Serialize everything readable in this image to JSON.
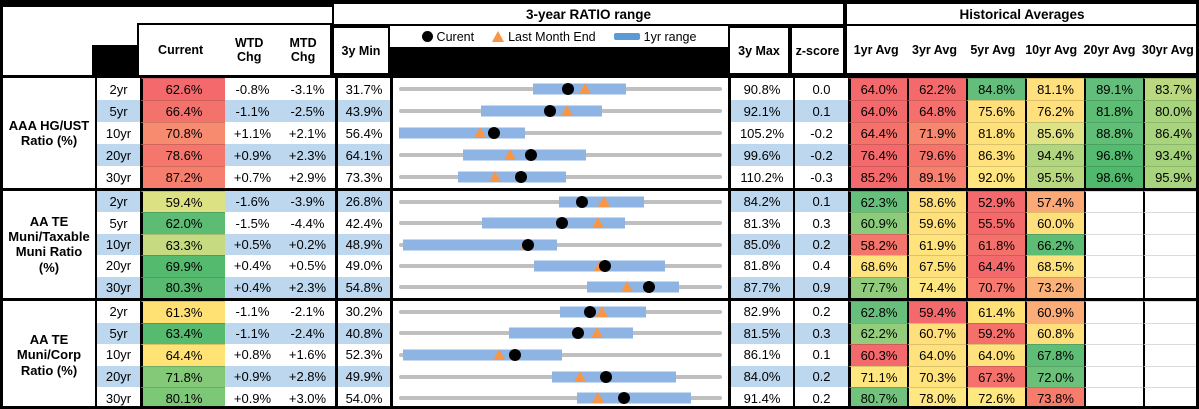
{
  "header": {
    "ratio_section_title": "3-year RATIO range",
    "hist_section_title": "Historical Averages",
    "columns": {
      "current": "Current",
      "wtd": "WTD Chg",
      "mtd": "MTD Chg",
      "min": "3y Min",
      "max": "3y Max",
      "z": "z-score"
    },
    "avg_columns": [
      "1yr Avg",
      "3yr Avg",
      "5yr Avg",
      "10yr Avg",
      "20yr Avg",
      "30yr Avg"
    ],
    "legend": {
      "current": "Curent",
      "last_month_end": "Last Month End",
      "yr1_range": "1yr range"
    }
  },
  "colors": {
    "band_blue": "#BDD7EE",
    "track_gray": "#BFBFBF",
    "bar_blue": "#8EB4E3",
    "marker_orange": "#F79646",
    "marker_black": "#000000",
    "scale_red": "#F4696B",
    "scale_yellow": "#FFE07C",
    "scale_green": "#63BE7B"
  },
  "chart_data": {
    "type": "range-plot-table",
    "title": "3-year RATIO range",
    "legend": [
      "Curent",
      "Last Month End",
      "1yr range"
    ],
    "note": "each row plots current dot, last-month-end triangle and 1yr-range bar on a 3yMin..3yMax axis",
    "groups": [
      {
        "label": "AAA HG/UST\nRatio (%)",
        "rows": [
          {
            "tenor": "2yr",
            "current": "62.6%",
            "current_bg": "#F4696B",
            "wtd": "-0.8%",
            "mtd": "-3.1%",
            "min": "31.7%",
            "max": "90.8%",
            "z": "0.0",
            "range_plot": {
              "axis_min": 31.7,
              "axis_max": 90.8,
              "current": 62.6,
              "last_month_end": 65.7,
              "yr1_low": 56.3,
              "yr1_high": 73.2
            },
            "avgs": [
              {
                "v": "64.0%",
                "bg": "#F4696B"
              },
              {
                "v": "62.2%",
                "bg": "#F4696B"
              },
              {
                "v": "84.8%",
                "bg": "#63BE7B"
              },
              {
                "v": "81.1%",
                "bg": "#FFE07C"
              },
              {
                "v": "89.1%",
                "bg": "#63BE7B"
              },
              {
                "v": "83.7%",
                "bg": "#B9D880"
              }
            ]
          },
          {
            "tenor": "5yr",
            "current": "66.4%",
            "current_bg": "#F3736C",
            "wtd": "-1.1%",
            "mtd": "-2.5%",
            "min": "43.9%",
            "max": "92.1%",
            "z": "0.1",
            "range_plot": {
              "axis_min": 43.9,
              "axis_max": 92.1,
              "current": 66.4,
              "last_month_end": 68.9,
              "yr1_low": 56.2,
              "yr1_high": 74.2
            },
            "avgs": [
              {
                "v": "64.0%",
                "bg": "#F4696B"
              },
              {
                "v": "64.8%",
                "bg": "#F56F6C"
              },
              {
                "v": "75.6%",
                "bg": "#FFDF7B"
              },
              {
                "v": "76.2%",
                "bg": "#FFE07C"
              },
              {
                "v": "81.8%",
                "bg": "#5EBD75"
              },
              {
                "v": "80.0%",
                "bg": "#A8D47E"
              }
            ]
          },
          {
            "tenor": "10yr",
            "current": "70.8%",
            "current_bg": "#F78B70",
            "wtd": "+1.1%",
            "mtd": "+2.1%",
            "min": "56.4%",
            "max": "105.2%",
            "z": "-0.2",
            "range_plot": {
              "axis_min": 56.4,
              "axis_max": 105.2,
              "current": 70.8,
              "last_month_end": 68.7,
              "yr1_low": 56.4,
              "yr1_high": 75.5
            },
            "avgs": [
              {
                "v": "64.4%",
                "bg": "#F4716C"
              },
              {
                "v": "71.9%",
                "bg": "#F8876F"
              },
              {
                "v": "81.8%",
                "bg": "#FFE17C"
              },
              {
                "v": "85.6%",
                "bg": "#DFE285"
              },
              {
                "v": "88.8%",
                "bg": "#60BE77"
              },
              {
                "v": "86.4%",
                "bg": "#A9D47E"
              }
            ]
          },
          {
            "tenor": "20yr",
            "current": "78.6%",
            "current_bg": "#F4766C",
            "wtd": "+0.9%",
            "mtd": "+2.3%",
            "min": "64.1%",
            "max": "99.6%",
            "z": "-0.2",
            "range_plot": {
              "axis_min": 64.1,
              "axis_max": 99.6,
              "current": 78.6,
              "last_month_end": 76.3,
              "yr1_low": 71.1,
              "yr1_high": 84.6
            },
            "avgs": [
              {
                "v": "76.4%",
                "bg": "#F4696B"
              },
              {
                "v": "79.6%",
                "bg": "#F5756C"
              },
              {
                "v": "86.3%",
                "bg": "#FFE27D"
              },
              {
                "v": "94.4%",
                "bg": "#B2D67F"
              },
              {
                "v": "96.8%",
                "bg": "#55BB70"
              },
              {
                "v": "93.4%",
                "bg": "#A5D37D"
              }
            ]
          },
          {
            "tenor": "30yr",
            "current": "87.2%",
            "current_bg": "#F57E6D",
            "wtd": "+0.7%",
            "mtd": "+2.9%",
            "min": "73.3%",
            "max": "110.2%",
            "z": "-0.3",
            "range_plot": {
              "axis_min": 73.3,
              "axis_max": 110.2,
              "current": 87.2,
              "last_month_end": 84.3,
              "yr1_low": 80.0,
              "yr1_high": 92.4
            },
            "avgs": [
              {
                "v": "85.2%",
                "bg": "#F4696B"
              },
              {
                "v": "89.1%",
                "bg": "#F8806E"
              },
              {
                "v": "92.0%",
                "bg": "#FFE67F"
              },
              {
                "v": "95.5%",
                "bg": "#B8D880"
              },
              {
                "v": "98.6%",
                "bg": "#50B96C"
              },
              {
                "v": "95.9%",
                "bg": "#A8D47E"
              }
            ]
          }
        ]
      },
      {
        "label": "AA TE\nMuni/Taxable\nMuni Ratio\n(%)",
        "rows": [
          {
            "tenor": "2yr",
            "current": "59.4%",
            "current_bg": "#DCE183",
            "wtd": "-1.6%",
            "mtd": "-3.9%",
            "min": "26.8%",
            "max": "84.2%",
            "z": "0.1",
            "range_plot": {
              "axis_min": 26.8,
              "axis_max": 84.2,
              "current": 59.4,
              "last_month_end": 63.3,
              "yr1_low": 55.3,
              "yr1_high": 70.4
            },
            "avgs": [
              {
                "v": "62.3%",
                "bg": "#66BF7A"
              },
              {
                "v": "58.6%",
                "bg": "#FFDF7B"
              },
              {
                "v": "52.9%",
                "bg": "#F4696B"
              },
              {
                "v": "57.4%",
                "bg": "#FBA977"
              },
              {
                "v": "",
                "bg": "#FFFFFF"
              },
              {
                "v": "",
                "bg": "#FFFFFF"
              }
            ]
          },
          {
            "tenor": "5yr",
            "current": "62.0%",
            "current_bg": "#5CBC73",
            "wtd": "-1.5%",
            "mtd": "-4.4%",
            "min": "42.4%",
            "max": "81.3%",
            "z": "0.3",
            "range_plot": {
              "axis_min": 42.4,
              "axis_max": 81.3,
              "current": 62.0,
              "last_month_end": 66.4,
              "yr1_low": 52.4,
              "yr1_high": 69.6
            },
            "avgs": [
              {
                "v": "60.9%",
                "bg": "#8BCB7B"
              },
              {
                "v": "59.6%",
                "bg": "#FFE07C"
              },
              {
                "v": "55.5%",
                "bg": "#F46A6B"
              },
              {
                "v": "60.0%",
                "bg": "#FFDF7B"
              },
              {
                "v": "",
                "bg": "#FFFFFF"
              },
              {
                "v": "",
                "bg": "#FFFFFF"
              }
            ]
          },
          {
            "tenor": "10yr",
            "current": "63.3%",
            "current_bg": "#C6DB81",
            "wtd": "+0.5%",
            "mtd": "+0.2%",
            "min": "48.9%",
            "max": "85.0%",
            "z": "0.2",
            "range_plot": {
              "axis_min": 48.9,
              "axis_max": 85.0,
              "current": 63.3,
              "last_month_end": 63.1,
              "yr1_low": 49.3,
              "yr1_high": 66.6
            },
            "avgs": [
              {
                "v": "58.2%",
                "bg": "#F4756C"
              },
              {
                "v": "61.9%",
                "bg": "#FFE37D"
              },
              {
                "v": "61.8%",
                "bg": "#F4706B"
              },
              {
                "v": "66.2%",
                "bg": "#5DBD75"
              },
              {
                "v": "",
                "bg": "#FFFFFF"
              },
              {
                "v": "",
                "bg": "#FFFFFF"
              }
            ]
          },
          {
            "tenor": "20yr",
            "current": "69.9%",
            "current_bg": "#53BA6E",
            "wtd": "+0.4%",
            "mtd": "+0.5%",
            "min": "49.0%",
            "max": "81.8%",
            "z": "0.4",
            "range_plot": {
              "axis_min": 49.0,
              "axis_max": 81.8,
              "current": 69.9,
              "last_month_end": 69.4,
              "yr1_low": 62.7,
              "yr1_high": 76.0
            },
            "avgs": [
              {
                "v": "68.6%",
                "bg": "#FFE47E"
              },
              {
                "v": "67.5%",
                "bg": "#FFE17C"
              },
              {
                "v": "64.4%",
                "bg": "#F4696B"
              },
              {
                "v": "68.5%",
                "bg": "#FFE27D"
              },
              {
                "v": "",
                "bg": "#FFFFFF"
              },
              {
                "v": "",
                "bg": "#FFFFFF"
              }
            ]
          },
          {
            "tenor": "30yr",
            "current": "80.3%",
            "current_bg": "#58BB71",
            "wtd": "+0.4%",
            "mtd": "+2.3%",
            "min": "54.8%",
            "max": "87.7%",
            "z": "0.9",
            "range_plot": {
              "axis_min": 54.8,
              "axis_max": 87.7,
              "current": 80.3,
              "last_month_end": 78.0,
              "yr1_low": 74.0,
              "yr1_high": 83.3
            },
            "avgs": [
              {
                "v": "77.7%",
                "bg": "#90CC7B"
              },
              {
                "v": "74.4%",
                "bg": "#FFE77F"
              },
              {
                "v": "70.7%",
                "bg": "#F8796D"
              },
              {
                "v": "73.2%",
                "bg": "#FBB278"
              },
              {
                "v": "",
                "bg": "#FFFFFF"
              },
              {
                "v": "",
                "bg": "#FFFFFF"
              }
            ]
          }
        ]
      },
      {
        "label": "AA TE\nMuni/Corp\nRatio (%)",
        "rows": [
          {
            "tenor": "2yr",
            "current": "61.3%",
            "current_bg": "#FFE072",
            "wtd": "-1.1%",
            "mtd": "-2.1%",
            "min": "30.2%",
            "max": "82.9%",
            "z": "0.2",
            "range_plot": {
              "axis_min": 30.2,
              "axis_max": 82.9,
              "current": 61.3,
              "last_month_end": 63.4,
              "yr1_low": 56.4,
              "yr1_high": 70.5
            },
            "avgs": [
              {
                "v": "62.8%",
                "bg": "#68BF7B"
              },
              {
                "v": "59.4%",
                "bg": "#F4696B"
              },
              {
                "v": "61.4%",
                "bg": "#FFE175"
              },
              {
                "v": "60.9%",
                "bg": "#FBAC77"
              },
              {
                "v": "",
                "bg": "#FFFFFF"
              },
              {
                "v": "",
                "bg": "#FFFFFF"
              }
            ]
          },
          {
            "tenor": "5yr",
            "current": "63.4%",
            "current_bg": "#56BA6F",
            "wtd": "-1.1%",
            "mtd": "-2.4%",
            "min": "40.8%",
            "max": "81.5%",
            "z": "0.3",
            "range_plot": {
              "axis_min": 40.8,
              "axis_max": 81.5,
              "current": 63.4,
              "last_month_end": 65.8,
              "yr1_low": 54.6,
              "yr1_high": 70.3
            },
            "avgs": [
              {
                "v": "62.2%",
                "bg": "#93CD7C"
              },
              {
                "v": "60.7%",
                "bg": "#FFDF7B"
              },
              {
                "v": "59.2%",
                "bg": "#F4706B"
              },
              {
                "v": "60.8%",
                "bg": "#FFDF7B"
              },
              {
                "v": "",
                "bg": "#FFFFFF"
              },
              {
                "v": "",
                "bg": "#FFFFFF"
              }
            ]
          },
          {
            "tenor": "10yr",
            "current": "64.4%",
            "current_bg": "#FFE374",
            "wtd": "+0.8%",
            "mtd": "+1.6%",
            "min": "52.3%",
            "max": "86.1%",
            "z": "0.1",
            "range_plot": {
              "axis_min": 52.3,
              "axis_max": 86.1,
              "current": 64.4,
              "last_month_end": 62.8,
              "yr1_low": 52.7,
              "yr1_high": 69.4
            },
            "avgs": [
              {
                "v": "60.3%",
                "bg": "#F4696B"
              },
              {
                "v": "64.0%",
                "bg": "#FFE27D"
              },
              {
                "v": "64.0%",
                "bg": "#FFE27D"
              },
              {
                "v": "67.8%",
                "bg": "#5FBD76"
              },
              {
                "v": "",
                "bg": "#FFFFFF"
              },
              {
                "v": "",
                "bg": "#FFFFFF"
              }
            ]
          },
          {
            "tenor": "20yr",
            "current": "71.8%",
            "current_bg": "#83C977",
            "wtd": "+0.9%",
            "mtd": "+2.8%",
            "min": "49.9%",
            "max": "84.0%",
            "z": "0.2",
            "range_plot": {
              "axis_min": 49.9,
              "axis_max": 84.0,
              "current": 71.8,
              "last_month_end": 69.0,
              "yr1_low": 66.0,
              "yr1_high": 79.1
            },
            "avgs": [
              {
                "v": "71.1%",
                "bg": "#FFE77F"
              },
              {
                "v": "70.3%",
                "bg": "#FFE37D"
              },
              {
                "v": "67.3%",
                "bg": "#F4716C"
              },
              {
                "v": "72.0%",
                "bg": "#6CC17A"
              },
              {
                "v": "",
                "bg": "#FFFFFF"
              },
              {
                "v": "",
                "bg": "#FFFFFF"
              }
            ]
          },
          {
            "tenor": "30yr",
            "current": "80.1%",
            "current_bg": "#7DC876",
            "wtd": "+0.9%",
            "mtd": "+3.0%",
            "min": "54.0%",
            "max": "91.4%",
            "z": "0.2",
            "range_plot": {
              "axis_min": 54.0,
              "axis_max": 91.4,
              "current": 80.1,
              "last_month_end": 77.1,
              "yr1_low": 74.6,
              "yr1_high": 87.8
            },
            "avgs": [
              {
                "v": "80.7%",
                "bg": "#70C27C"
              },
              {
                "v": "78.0%",
                "bg": "#FFE781"
              },
              {
                "v": "72.6%",
                "bg": "#FFE87F"
              },
              {
                "v": "73.8%",
                "bg": "#F87C6B"
              },
              {
                "v": "",
                "bg": "#FFFFFF"
              },
              {
                "v": "",
                "bg": "#FFFFFF"
              }
            ]
          }
        ]
      }
    ]
  }
}
